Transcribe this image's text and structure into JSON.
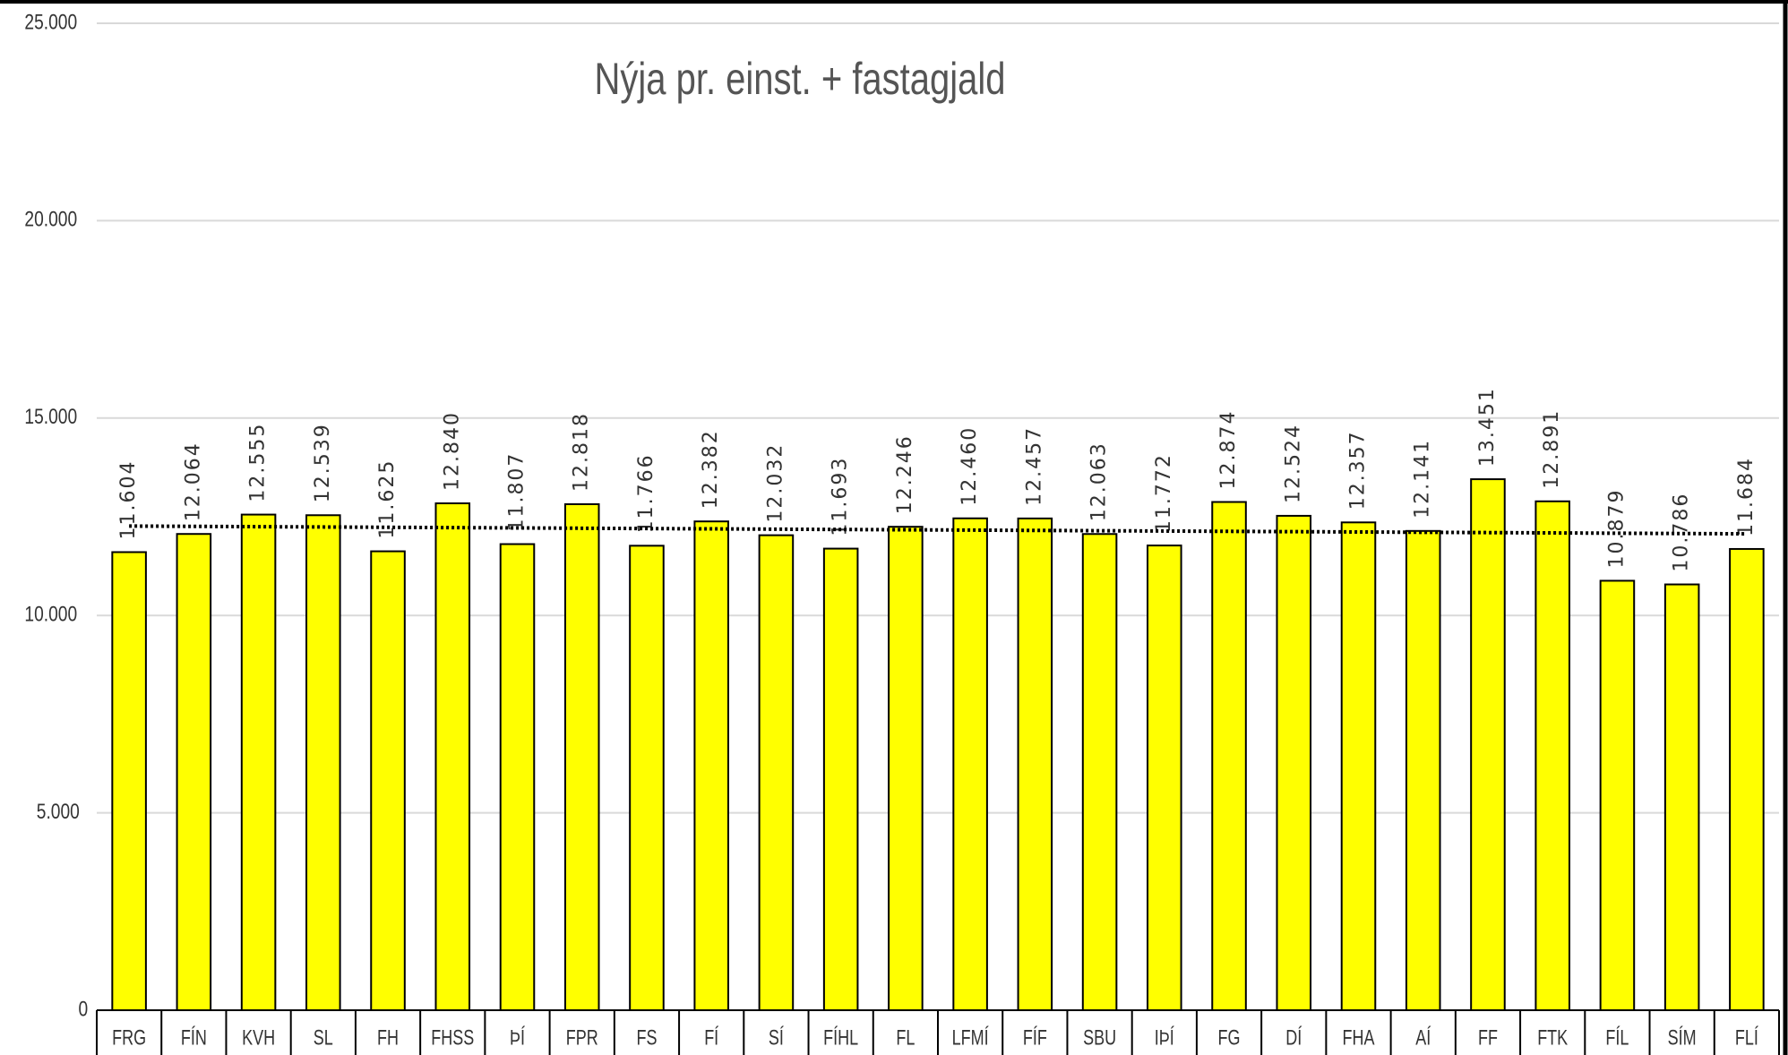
{
  "chart_data": {
    "type": "bar",
    "title": "Nýja pr. einst. + fastagjald",
    "categories": [
      "FRG",
      "FÍN",
      "KVH",
      "SL",
      "FH",
      "FHSS",
      "ÞÍ",
      "FPR",
      "FS",
      "FÍ",
      "SÍ",
      "FÍHL",
      "FL",
      "LFMÍ",
      "FÍF",
      "SBU",
      "IÞÍ",
      "FG",
      "DÍ",
      "FHA",
      "AÍ",
      "FF",
      "FTK",
      "FÍL",
      "SÍM",
      "FLÍ"
    ],
    "values": [
      11604,
      12064,
      12555,
      12539,
      11625,
      12840,
      11807,
      12818,
      11766,
      12382,
      12032,
      11693,
      12246,
      12460,
      12457,
      12063,
      11772,
      12874,
      12524,
      12357,
      12141,
      13451,
      12891,
      10879,
      10786,
      11684
    ],
    "value_labels": [
      "11.604",
      "12.064",
      "12.555",
      "12.539",
      "11.625",
      "12.840",
      "11.807",
      "12.818",
      "11.766",
      "12.382",
      "12.032",
      "11.693",
      "12.246",
      "12.460",
      "12.457",
      "12.063",
      "11.772",
      "12.874",
      "12.524",
      "12.357",
      "12.141",
      "13.451",
      "12.891",
      "10.879",
      "10.786",
      "11.684"
    ],
    "color": "#ffff00",
    "ylim": [
      0,
      25000
    ],
    "yticks": [
      0,
      {
        "value": 5000,
        "label": "5.000"
      },
      {
        "value": 10000,
        "label": "10.000"
      },
      {
        "value": 15000,
        "label": "15.000"
      },
      {
        "value": 20000,
        "label": "20.000"
      },
      {
        "value": 25000,
        "label": "25.000"
      }
    ],
    "grid": true,
    "trendline": true
  }
}
